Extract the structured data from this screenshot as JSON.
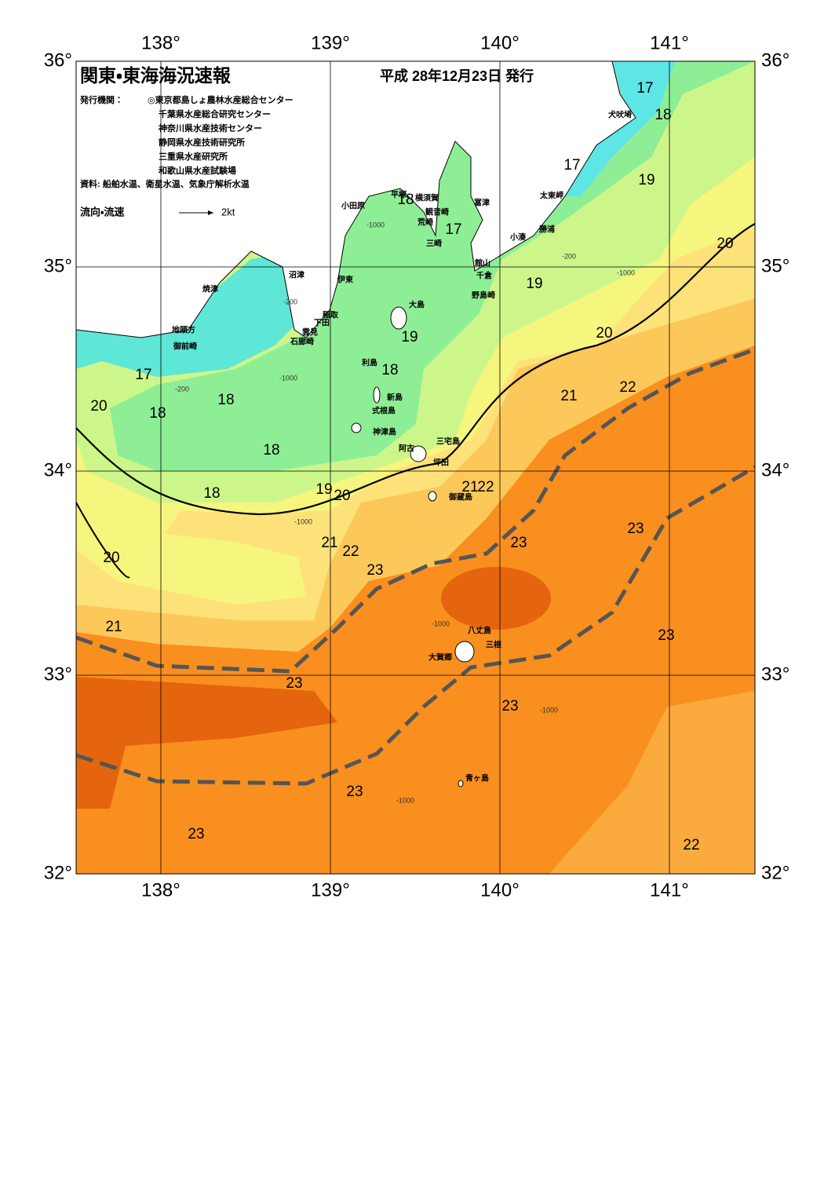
{
  "header": {
    "title": "関東・東海海況速報",
    "date": "平成 28年12月23日 発行",
    "issuer_label": "発行機関：",
    "issuers": [
      "◎東京都島しょ農林水産総合センター",
      "千葉県水産総合研究センター",
      "神奈川県水産技術センター",
      "静岡県水産技術研究所",
      "三重県水産研究所",
      "和歌山県水産試験場"
    ],
    "sources": "資料: 船舶水温、衛星水温、気象庁解析水温",
    "legend_label": "流向・流速",
    "legend_speed": "2kt"
  },
  "axes": {
    "lon_labels": [
      "138°",
      "139°",
      "140°",
      "141°"
    ],
    "lat_labels": [
      "36°",
      "35°",
      "34°",
      "33°",
      "32°"
    ]
  },
  "places": [
    "犬吠埼",
    "太東岬",
    "勝浦",
    "小湊",
    "富津",
    "館山",
    "千倉",
    "野島崎",
    "横須賀",
    "観音崎",
    "平塚",
    "小田原",
    "荒崎",
    "三崎",
    "沼津",
    "伊東",
    "焼津",
    "稲取",
    "下田",
    "雲見",
    "石廊崎",
    "地頭方",
    "御前崎",
    "大島",
    "利島",
    "新島",
    "式根島",
    "神津島",
    "三宅島",
    "阿古",
    "坪田",
    "御蔵島",
    "八丈島",
    "三根",
    "大賀郷",
    "青ヶ島"
  ],
  "temperature_labels": [
    17,
    18,
    17,
    19,
    20,
    17,
    18,
    19,
    20,
    19,
    18,
    17,
    20,
    18,
    18,
    18,
    18,
    19,
    20,
    21,
    22,
    21,
    22,
    23,
    23,
    21,
    22,
    23,
    20,
    21,
    23,
    23,
    23,
    23,
    23,
    22
  ],
  "depth_labels": [
    "-200",
    "-1000",
    "-200",
    "-1000",
    "-1000",
    "-200",
    "-1000",
    "-1000",
    "-1000",
    "-1000"
  ]
}
